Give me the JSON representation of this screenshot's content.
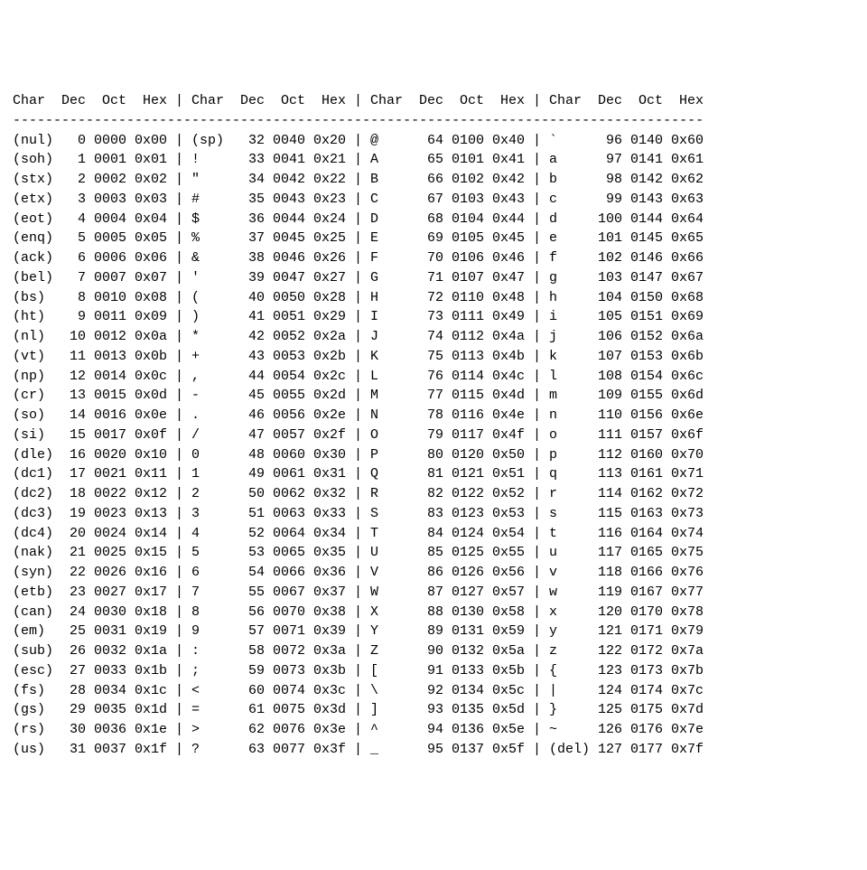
{
  "table": {
    "type": "table",
    "font_family": "monospace",
    "font_size_pt": 12,
    "background_color": "#ffffff",
    "text_color": "#000000",
    "separator_glyph": "|",
    "rule_char": "-",
    "columns_per_group": [
      "Char",
      "Dec",
      "Oct",
      "Hex"
    ],
    "groups": 4,
    "col_widths_ch": {
      "char": 5,
      "dec": 4,
      "oct": 5,
      "hex": 5,
      "sep": 3
    },
    "header": [
      "Char",
      "Dec",
      "Oct",
      "Hex",
      "|",
      "Char",
      "Dec",
      "Oct",
      "Hex",
      "|",
      "Char",
      "Dec",
      "Oct",
      "Hex",
      "|",
      "Char",
      "Dec",
      "Oct",
      "Hex"
    ],
    "rows": [
      {
        "c0": "(nul)",
        "d0": "0",
        "o0": "0000",
        "h0": "0x00",
        "c1": "(sp)",
        "d1": "32",
        "o1": "0040",
        "h1": "0x20",
        "c2": "@",
        "d2": "64",
        "o2": "0100",
        "h2": "0x40",
        "c3": "`",
        "d3": "96",
        "o3": "0140",
        "h3": "0x60"
      },
      {
        "c0": "(soh)",
        "d0": "1",
        "o0": "0001",
        "h0": "0x01",
        "c1": "!",
        "d1": "33",
        "o1": "0041",
        "h1": "0x21",
        "c2": "A",
        "d2": "65",
        "o2": "0101",
        "h2": "0x41",
        "c3": "a",
        "d3": "97",
        "o3": "0141",
        "h3": "0x61"
      },
      {
        "c0": "(stx)",
        "d0": "2",
        "o0": "0002",
        "h0": "0x02",
        "c1": "\"",
        "d1": "34",
        "o1": "0042",
        "h1": "0x22",
        "c2": "B",
        "d2": "66",
        "o2": "0102",
        "h2": "0x42",
        "c3": "b",
        "d3": "98",
        "o3": "0142",
        "h3": "0x62"
      },
      {
        "c0": "(etx)",
        "d0": "3",
        "o0": "0003",
        "h0": "0x03",
        "c1": "#",
        "d1": "35",
        "o1": "0043",
        "h1": "0x23",
        "c2": "C",
        "d2": "67",
        "o2": "0103",
        "h2": "0x43",
        "c3": "c",
        "d3": "99",
        "o3": "0143",
        "h3": "0x63"
      },
      {
        "c0": "(eot)",
        "d0": "4",
        "o0": "0004",
        "h0": "0x04",
        "c1": "$",
        "d1": "36",
        "o1": "0044",
        "h1": "0x24",
        "c2": "D",
        "d2": "68",
        "o2": "0104",
        "h2": "0x44",
        "c3": "d",
        "d3": "100",
        "o3": "0144",
        "h3": "0x64"
      },
      {
        "c0": "(enq)",
        "d0": "5",
        "o0": "0005",
        "h0": "0x05",
        "c1": "%",
        "d1": "37",
        "o1": "0045",
        "h1": "0x25",
        "c2": "E",
        "d2": "69",
        "o2": "0105",
        "h2": "0x45",
        "c3": "e",
        "d3": "101",
        "o3": "0145",
        "h3": "0x65"
      },
      {
        "c0": "(ack)",
        "d0": "6",
        "o0": "0006",
        "h0": "0x06",
        "c1": "&",
        "d1": "38",
        "o1": "0046",
        "h1": "0x26",
        "c2": "F",
        "d2": "70",
        "o2": "0106",
        "h2": "0x46",
        "c3": "f",
        "d3": "102",
        "o3": "0146",
        "h3": "0x66"
      },
      {
        "c0": "(bel)",
        "d0": "7",
        "o0": "0007",
        "h0": "0x07",
        "c1": "'",
        "d1": "39",
        "o1": "0047",
        "h1": "0x27",
        "c2": "G",
        "d2": "71",
        "o2": "0107",
        "h2": "0x47",
        "c3": "g",
        "d3": "103",
        "o3": "0147",
        "h3": "0x67"
      },
      {
        "c0": "(bs)",
        "d0": "8",
        "o0": "0010",
        "h0": "0x08",
        "c1": "(",
        "d1": "40",
        "o1": "0050",
        "h1": "0x28",
        "c2": "H",
        "d2": "72",
        "o2": "0110",
        "h2": "0x48",
        "c3": "h",
        "d3": "104",
        "o3": "0150",
        "h3": "0x68"
      },
      {
        "c0": "(ht)",
        "d0": "9",
        "o0": "0011",
        "h0": "0x09",
        "c1": ")",
        "d1": "41",
        "o1": "0051",
        "h1": "0x29",
        "c2": "I",
        "d2": "73",
        "o2": "0111",
        "h2": "0x49",
        "c3": "i",
        "d3": "105",
        "o3": "0151",
        "h3": "0x69"
      },
      {
        "c0": "(nl)",
        "d0": "10",
        "o0": "0012",
        "h0": "0x0a",
        "c1": "*",
        "d1": "42",
        "o1": "0052",
        "h1": "0x2a",
        "c2": "J",
        "d2": "74",
        "o2": "0112",
        "h2": "0x4a",
        "c3": "j",
        "d3": "106",
        "o3": "0152",
        "h3": "0x6a"
      },
      {
        "c0": "(vt)",
        "d0": "11",
        "o0": "0013",
        "h0": "0x0b",
        "c1": "+",
        "d1": "43",
        "o1": "0053",
        "h1": "0x2b",
        "c2": "K",
        "d2": "75",
        "o2": "0113",
        "h2": "0x4b",
        "c3": "k",
        "d3": "107",
        "o3": "0153",
        "h3": "0x6b"
      },
      {
        "c0": "(np)",
        "d0": "12",
        "o0": "0014",
        "h0": "0x0c",
        "c1": ",",
        "d1": "44",
        "o1": "0054",
        "h1": "0x2c",
        "c2": "L",
        "d2": "76",
        "o2": "0114",
        "h2": "0x4c",
        "c3": "l",
        "d3": "108",
        "o3": "0154",
        "h3": "0x6c"
      },
      {
        "c0": "(cr)",
        "d0": "13",
        "o0": "0015",
        "h0": "0x0d",
        "c1": "-",
        "d1": "45",
        "o1": "0055",
        "h1": "0x2d",
        "c2": "M",
        "d2": "77",
        "o2": "0115",
        "h2": "0x4d",
        "c3": "m",
        "d3": "109",
        "o3": "0155",
        "h3": "0x6d"
      },
      {
        "c0": "(so)",
        "d0": "14",
        "o0": "0016",
        "h0": "0x0e",
        "c1": ".",
        "d1": "46",
        "o1": "0056",
        "h1": "0x2e",
        "c2": "N",
        "d2": "78",
        "o2": "0116",
        "h2": "0x4e",
        "c3": "n",
        "d3": "110",
        "o3": "0156",
        "h3": "0x6e"
      },
      {
        "c0": "(si)",
        "d0": "15",
        "o0": "0017",
        "h0": "0x0f",
        "c1": "/",
        "d1": "47",
        "o1": "0057",
        "h1": "0x2f",
        "c2": "O",
        "d2": "79",
        "o2": "0117",
        "h2": "0x4f",
        "c3": "o",
        "d3": "111",
        "o3": "0157",
        "h3": "0x6f"
      },
      {
        "c0": "(dle)",
        "d0": "16",
        "o0": "0020",
        "h0": "0x10",
        "c1": "0",
        "d1": "48",
        "o1": "0060",
        "h1": "0x30",
        "c2": "P",
        "d2": "80",
        "o2": "0120",
        "h2": "0x50",
        "c3": "p",
        "d3": "112",
        "o3": "0160",
        "h3": "0x70"
      },
      {
        "c0": "(dc1)",
        "d0": "17",
        "o0": "0021",
        "h0": "0x11",
        "c1": "1",
        "d1": "49",
        "o1": "0061",
        "h1": "0x31",
        "c2": "Q",
        "d2": "81",
        "o2": "0121",
        "h2": "0x51",
        "c3": "q",
        "d3": "113",
        "o3": "0161",
        "h3": "0x71"
      },
      {
        "c0": "(dc2)",
        "d0": "18",
        "o0": "0022",
        "h0": "0x12",
        "c1": "2",
        "d1": "50",
        "o1": "0062",
        "h1": "0x32",
        "c2": "R",
        "d2": "82",
        "o2": "0122",
        "h2": "0x52",
        "c3": "r",
        "d3": "114",
        "o3": "0162",
        "h3": "0x72"
      },
      {
        "c0": "(dc3)",
        "d0": "19",
        "o0": "0023",
        "h0": "0x13",
        "c1": "3",
        "d1": "51",
        "o1": "0063",
        "h1": "0x33",
        "c2": "S",
        "d2": "83",
        "o2": "0123",
        "h2": "0x53",
        "c3": "s",
        "d3": "115",
        "o3": "0163",
        "h3": "0x73"
      },
      {
        "c0": "(dc4)",
        "d0": "20",
        "o0": "0024",
        "h0": "0x14",
        "c1": "4",
        "d1": "52",
        "o1": "0064",
        "h1": "0x34",
        "c2": "T",
        "d2": "84",
        "o2": "0124",
        "h2": "0x54",
        "c3": "t",
        "d3": "116",
        "o3": "0164",
        "h3": "0x74"
      },
      {
        "c0": "(nak)",
        "d0": "21",
        "o0": "0025",
        "h0": "0x15",
        "c1": "5",
        "d1": "53",
        "o1": "0065",
        "h1": "0x35",
        "c2": "U",
        "d2": "85",
        "o2": "0125",
        "h2": "0x55",
        "c3": "u",
        "d3": "117",
        "o3": "0165",
        "h3": "0x75"
      },
      {
        "c0": "(syn)",
        "d0": "22",
        "o0": "0026",
        "h0": "0x16",
        "c1": "6",
        "d1": "54",
        "o1": "0066",
        "h1": "0x36",
        "c2": "V",
        "d2": "86",
        "o2": "0126",
        "h2": "0x56",
        "c3": "v",
        "d3": "118",
        "o3": "0166",
        "h3": "0x76"
      },
      {
        "c0": "(etb)",
        "d0": "23",
        "o0": "0027",
        "h0": "0x17",
        "c1": "7",
        "d1": "55",
        "o1": "0067",
        "h1": "0x37",
        "c2": "W",
        "d2": "87",
        "o2": "0127",
        "h2": "0x57",
        "c3": "w",
        "d3": "119",
        "o3": "0167",
        "h3": "0x77"
      },
      {
        "c0": "(can)",
        "d0": "24",
        "o0": "0030",
        "h0": "0x18",
        "c1": "8",
        "d1": "56",
        "o1": "0070",
        "h1": "0x38",
        "c2": "X",
        "d2": "88",
        "o2": "0130",
        "h2": "0x58",
        "c3": "x",
        "d3": "120",
        "o3": "0170",
        "h3": "0x78"
      },
      {
        "c0": "(em)",
        "d0": "25",
        "o0": "0031",
        "h0": "0x19",
        "c1": "9",
        "d1": "57",
        "o1": "0071",
        "h1": "0x39",
        "c2": "Y",
        "d2": "89",
        "o2": "0131",
        "h2": "0x59",
        "c3": "y",
        "d3": "121",
        "o3": "0171",
        "h3": "0x79"
      },
      {
        "c0": "(sub)",
        "d0": "26",
        "o0": "0032",
        "h0": "0x1a",
        "c1": ":",
        "d1": "58",
        "o1": "0072",
        "h1": "0x3a",
        "c2": "Z",
        "d2": "90",
        "o2": "0132",
        "h2": "0x5a",
        "c3": "z",
        "d3": "122",
        "o3": "0172",
        "h3": "0x7a"
      },
      {
        "c0": "(esc)",
        "d0": "27",
        "o0": "0033",
        "h0": "0x1b",
        "c1": ";",
        "d1": "59",
        "o1": "0073",
        "h1": "0x3b",
        "c2": "[",
        "d2": "91",
        "o2": "0133",
        "h2": "0x5b",
        "c3": "{",
        "d3": "123",
        "o3": "0173",
        "h3": "0x7b"
      },
      {
        "c0": "(fs)",
        "d0": "28",
        "o0": "0034",
        "h0": "0x1c",
        "c1": "<",
        "d1": "60",
        "o1": "0074",
        "h1": "0x3c",
        "c2": "\\",
        "d2": "92",
        "o2": "0134",
        "h2": "0x5c",
        "c3": "|",
        "d3": "124",
        "o3": "0174",
        "h3": "0x7c"
      },
      {
        "c0": "(gs)",
        "d0": "29",
        "o0": "0035",
        "h0": "0x1d",
        "c1": "=",
        "d1": "61",
        "o1": "0075",
        "h1": "0x3d",
        "c2": "]",
        "d2": "93",
        "o2": "0135",
        "h2": "0x5d",
        "c3": "}",
        "d3": "125",
        "o3": "0175",
        "h3": "0x7d"
      },
      {
        "c0": "(rs)",
        "d0": "30",
        "o0": "0036",
        "h0": "0x1e",
        "c1": ">",
        "d1": "62",
        "o1": "0076",
        "h1": "0x3e",
        "c2": "^",
        "d2": "94",
        "o2": "0136",
        "h2": "0x5e",
        "c3": "~",
        "d3": "126",
        "o3": "0176",
        "h3": "0x7e"
      },
      {
        "c0": "(us)",
        "d0": "31",
        "o0": "0037",
        "h0": "0x1f",
        "c1": "?",
        "d1": "63",
        "o1": "0077",
        "h1": "0x3f",
        "c2": "_",
        "d2": "95",
        "o2": "0137",
        "h2": "0x5f",
        "c3": "(del)",
        "d3": "127",
        "o3": "0177",
        "h3": "0x7f"
      }
    ]
  }
}
